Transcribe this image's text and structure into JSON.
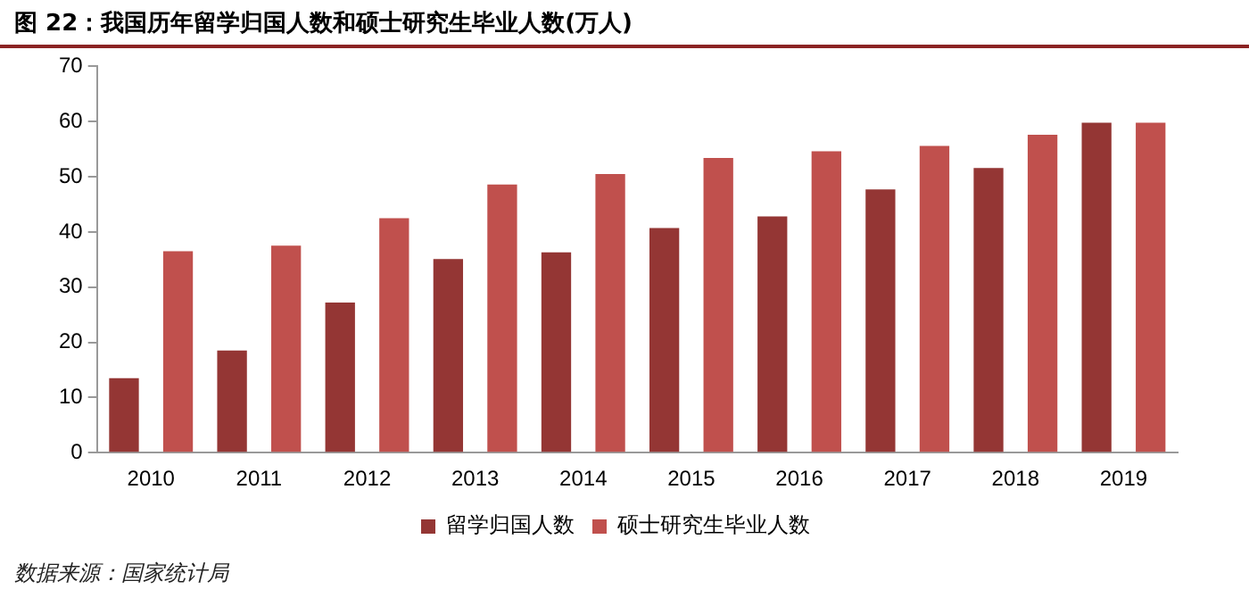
{
  "chart_data": {
    "type": "bar",
    "title": "图 22：我国历年留学归国人数和硕士研究生毕业人数(万人)",
    "categories": [
      "2010",
      "2011",
      "2012",
      "2013",
      "2014",
      "2015",
      "2016",
      "2017",
      "2018",
      "2019"
    ],
    "series": [
      {
        "name": "留学归国人数",
        "color": "#943634",
        "values": [
          13.5,
          18.5,
          27.2,
          35.1,
          36.3,
          40.7,
          42.8,
          47.7,
          51.6,
          59.8
        ]
      },
      {
        "name": "硕士研究生毕业人数",
        "color": "#c0504d",
        "values": [
          36.5,
          37.5,
          42.5,
          48.6,
          50.5,
          53.4,
          54.6,
          55.6,
          57.6,
          59.8
        ]
      }
    ],
    "ylim": [
      0,
      70
    ],
    "yticks": [
      0,
      10,
      20,
      30,
      40,
      50,
      60,
      70
    ],
    "grid": false,
    "legend": "bottom",
    "annotations": [
      "数据来源：国家统计局"
    ]
  }
}
